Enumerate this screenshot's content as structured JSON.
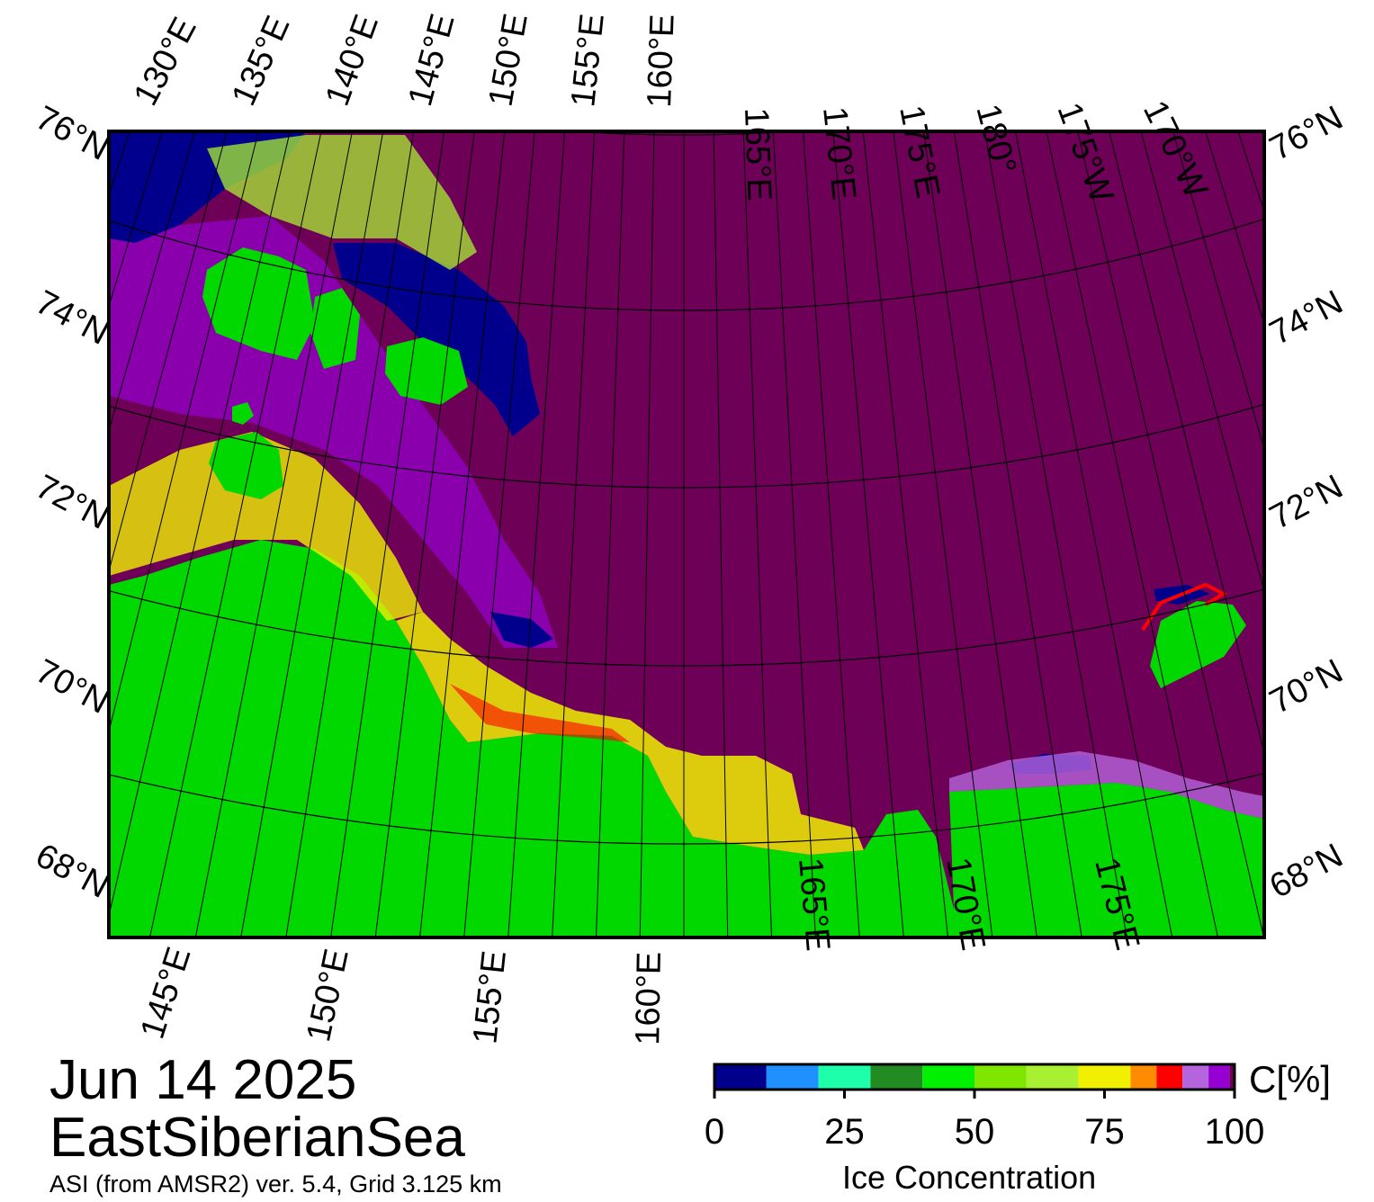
{
  "title": {
    "date": "Jun 14 2025",
    "region": "EastSiberianSea",
    "source": "ASI (from AMSR2) ver. 5.4,  Grid 3.125 km"
  },
  "colors": {
    "water": "#6e0058",
    "land": "#00d800",
    "frame": "#000000"
  },
  "map": {
    "lat_labels": [
      "76°N",
      "74°N",
      "72°N",
      "70°N",
      "68°N"
    ],
    "top_lon_labels": [
      "130°E",
      "135°E",
      "140°E",
      "145°E",
      "150°E",
      "155°E",
      "160°E",
      "165°E",
      "170°E",
      "175°E",
      "180°",
      "175°W",
      "170°W"
    ],
    "bottom_lon_labels": [
      "145°E",
      "150°E",
      "155°E",
      "160°E",
      "165°E",
      "170°E",
      "175°E"
    ]
  },
  "legend": {
    "label": "Ice Concentration",
    "unit": "C[%]",
    "ticks": [
      "0",
      "25",
      "50",
      "75",
      "100"
    ],
    "bins": [
      {
        "from": 0,
        "to": 10,
        "color": "#00008c"
      },
      {
        "from": 10,
        "to": 20,
        "color": "#1e90ff"
      },
      {
        "from": 20,
        "to": 30,
        "color": "#1effaa"
      },
      {
        "from": 30,
        "to": 40,
        "color": "#228b22"
      },
      {
        "from": 40,
        "to": 50,
        "color": "#00f000"
      },
      {
        "from": 50,
        "to": 60,
        "color": "#7fe600"
      },
      {
        "from": 60,
        "to": 70,
        "color": "#aaf032"
      },
      {
        "from": 70,
        "to": 80,
        "color": "#f0f000"
      },
      {
        "from": 80,
        "to": 85,
        "color": "#ff8c00"
      },
      {
        "from": 85,
        "to": 90,
        "color": "#ff0000"
      },
      {
        "from": 90,
        "to": 95,
        "color": "#b464dc"
      },
      {
        "from": 95,
        "to": 99,
        "color": "#9600d2"
      },
      {
        "from": 99,
        "to": 100,
        "color": "#6e0058"
      }
    ]
  }
}
